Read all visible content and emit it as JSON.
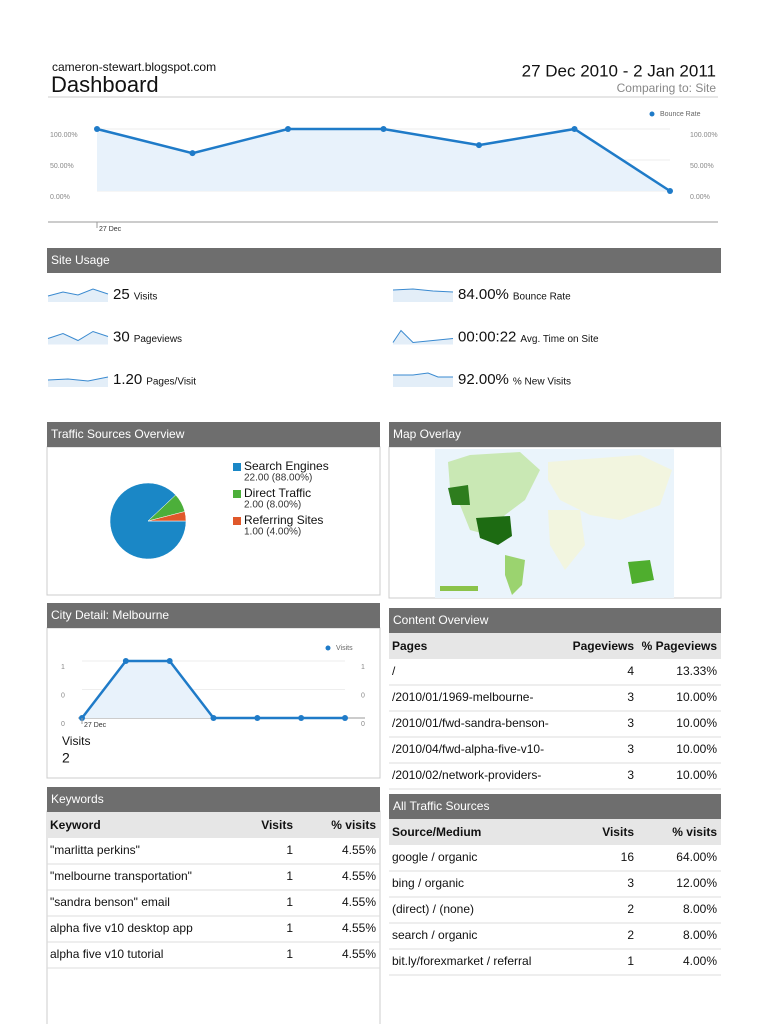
{
  "header": {
    "site": "cameron-stewart.blogspot.com",
    "title": "Dashboard",
    "date_range": "27 Dec 2010 - 2 Jan 2011",
    "comparing": "Comparing to: Site"
  },
  "chart_data": [
    {
      "type": "line",
      "x": [
        "27 Dec",
        null,
        null,
        null,
        null,
        null,
        null
      ],
      "series": [
        {
          "name": "Bounce Rate",
          "color": "#1f7bc8",
          "values": [
            100,
            61,
            100,
            100,
            74,
            100,
            0
          ]
        }
      ],
      "ylim": [
        0,
        100
      ],
      "yticks": [
        {
          "value": 0,
          "label": "0.00%"
        },
        {
          "value": 50,
          "label": "50.00%"
        },
        {
          "value": 100,
          "label": "100.00%"
        }
      ],
      "grid": true
    },
    {
      "type": "pie",
      "title": "Traffic Sources Overview",
      "categories": [
        "Search Engines",
        "Direct Traffic",
        "Referring Sites"
      ],
      "values": [
        22,
        2,
        1
      ],
      "value_labels": [
        "22.00 (88.00%)",
        "2.00 (8.00%)",
        "1.00 (4.00%)"
      ],
      "colors": [
        "#1a87c6",
        "#4caf3a",
        "#e0582a"
      ]
    },
    {
      "type": "line",
      "title": "City Detail: Melbourne",
      "x": [
        "27 Dec",
        null,
        null,
        null,
        null,
        null,
        null
      ],
      "series": [
        {
          "name": "Visits",
          "color": "#1f7bc8",
          "values": [
            0,
            1,
            1,
            0,
            0,
            0,
            0
          ]
        }
      ],
      "ylim": [
        0,
        1
      ],
      "yticks": [
        0,
        {
          "value": 0.5,
          "label": "0"
        },
        1
      ],
      "grid": true,
      "total_label": "Visits",
      "total": "2"
    }
  ],
  "site_usage": {
    "title": "Site Usage",
    "metrics": [
      {
        "value": "25",
        "label": "Visits"
      },
      {
        "value": "30",
        "label": "Pageviews"
      },
      {
        "value": "1.20",
        "label": "Pages/Visit"
      },
      {
        "value": "84.00%",
        "label": "Bounce Rate"
      },
      {
        "value": "00:00:22",
        "label": "Avg. Time on Site"
      },
      {
        "value": "92.00%",
        "label": "% New Visits"
      }
    ]
  },
  "map": {
    "title": "Map Overlay"
  },
  "content_overview": {
    "title": "Content Overview",
    "headers": [
      "Pages",
      "Pageviews",
      "% Pageviews"
    ],
    "rows": [
      [
        "/",
        "4",
        "13.33%"
      ],
      [
        "/2010/01/1969-melbourne-",
        "3",
        "10.00%"
      ],
      [
        "/2010/01/fwd-sandra-benson-",
        "3",
        "10.00%"
      ],
      [
        "/2010/04/fwd-alpha-five-v10-",
        "3",
        "10.00%"
      ],
      [
        "/2010/02/network-providers-",
        "3",
        "10.00%"
      ]
    ]
  },
  "keywords": {
    "title": "Keywords",
    "headers": [
      "Keyword",
      "Visits",
      "% visits"
    ],
    "rows": [
      [
        "\"marlitta perkins\"",
        "1",
        "4.55%"
      ],
      [
        "\"melbourne transportation\"",
        "1",
        "4.55%"
      ],
      [
        "\"sandra benson\" email",
        "1",
        "4.55%"
      ],
      [
        "alpha five v10 desktop app",
        "1",
        "4.55%"
      ],
      [
        "alpha five v10 tutorial",
        "1",
        "4.55%"
      ]
    ]
  },
  "all_traffic_sources": {
    "title": "All Traffic Sources",
    "headers": [
      "Source/Medium",
      "Visits",
      "% visits"
    ],
    "rows": [
      [
        "google / organic",
        "16",
        "64.00%"
      ],
      [
        "bing / organic",
        "3",
        "12.00%"
      ],
      [
        "(direct) / (none)",
        "2",
        "8.00%"
      ],
      [
        "search / organic",
        "2",
        "8.00%"
      ],
      [
        "bit.ly/forexmarket / referral",
        "1",
        "4.00%"
      ]
    ]
  }
}
